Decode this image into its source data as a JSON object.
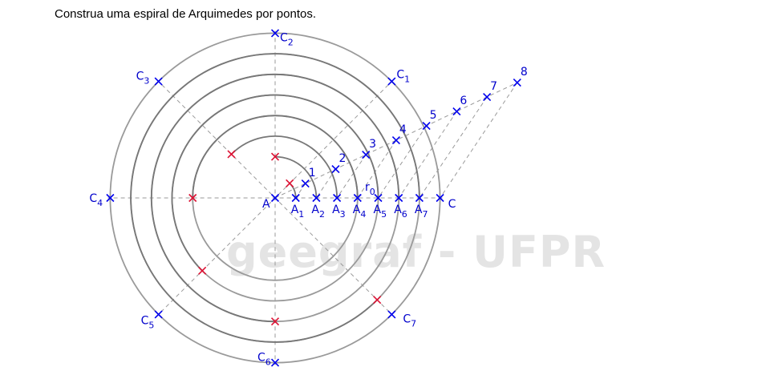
{
  "title": "Construa uma espiral de Arquimedes por pontos.",
  "watermark": "geegraf - UFPR",
  "colors": {
    "circle": "#9a9a9a",
    "spiral": "#777777",
    "dash": "#9a9a9a",
    "point_blue": "#0000ee",
    "point_red": "#dd1133",
    "label": "#0000cc"
  },
  "labels": {
    "center": "A",
    "end": "C",
    "radius": "r",
    "radius_sub": "0",
    "circle_points": [
      {
        "name": "C",
        "sub": "1"
      },
      {
        "name": "C",
        "sub": "2"
      },
      {
        "name": "C",
        "sub": "3"
      },
      {
        "name": "C",
        "sub": "4"
      },
      {
        "name": "C",
        "sub": "5"
      },
      {
        "name": "C",
        "sub": "6"
      },
      {
        "name": "C",
        "sub": "7"
      }
    ],
    "axis_points": [
      {
        "name": "A",
        "sub": "1"
      },
      {
        "name": "A",
        "sub": "2"
      },
      {
        "name": "A",
        "sub": "3"
      },
      {
        "name": "A",
        "sub": "4"
      },
      {
        "name": "A",
        "sub": "5"
      },
      {
        "name": "A",
        "sub": "6"
      },
      {
        "name": "A",
        "sub": "7"
      }
    ],
    "division_points": [
      "1",
      "2",
      "3",
      "4",
      "5",
      "6",
      "7",
      "8"
    ]
  }
}
